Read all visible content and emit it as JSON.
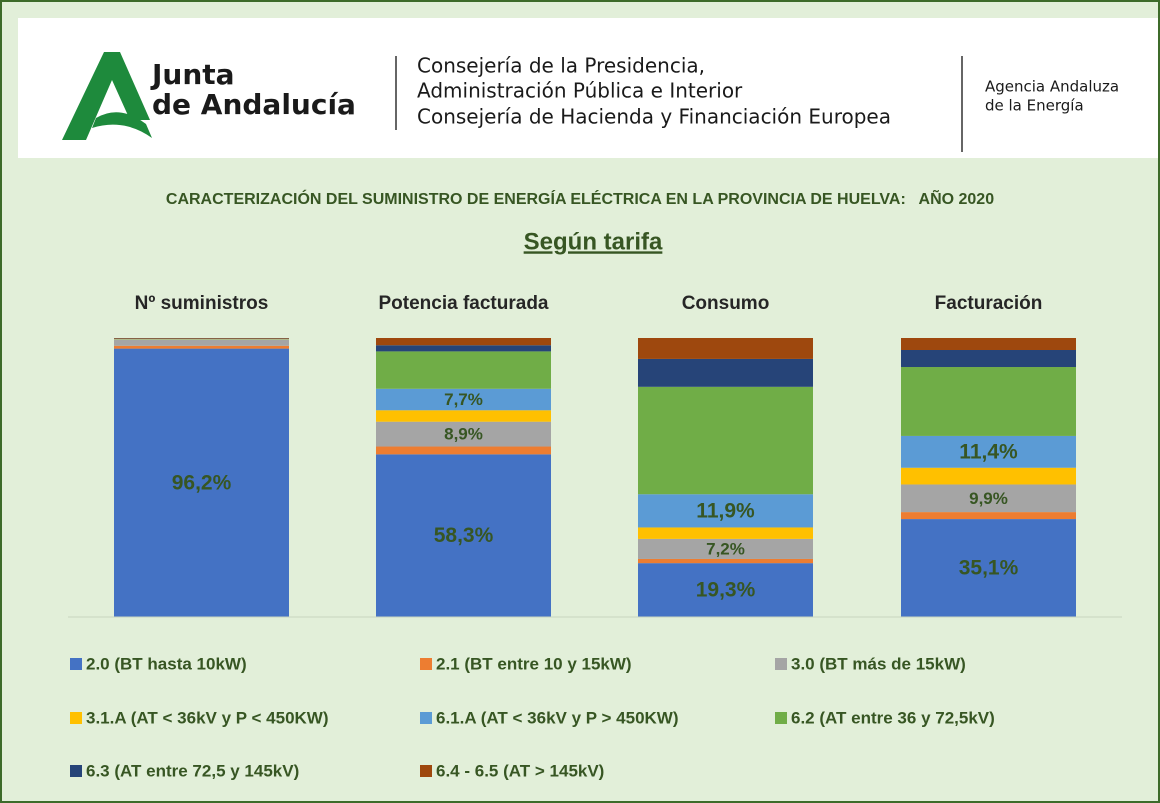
{
  "header": {
    "logo": [
      "Junta",
      "de Andalucía"
    ],
    "department": [
      "Consejería de la Presidencia,",
      "Administración Pública e Interior",
      "Consejería de Hacienda y Financiación Europea"
    ],
    "agency": [
      "Agencia Andaluza",
      "de la Energía"
    ]
  },
  "chart_data": {
    "type": "stacked_bar",
    "title": "CARACTERIZACIÓN DEL SUMINISTRO DE ENERGÍA ELÉCTRICA EN LA PROVINCIA DE HUELVA:   AÑO 2020",
    "subtitle": "Según tarifa",
    "categories": [
      "Nº suministros",
      "Potencia facturada",
      "Consumo",
      "Facturación"
    ],
    "ylim": [
      0,
      100
    ],
    "series": [
      {
        "name": "2.0 (BT hasta 10kW)",
        "color": "#4472c4",
        "values": [
          96.2,
          58.3,
          19.3,
          35.1
        ],
        "value_labels": [
          "96,2%",
          "58,3%",
          "19,3%",
          "35,1%"
        ]
      },
      {
        "name": "2.1 (BT entre 10 y 15kW)",
        "color": "#ed7d31",
        "values": [
          1.0,
          2.8,
          1.5,
          2.5
        ],
        "value_labels": [
          null,
          null,
          null,
          null
        ]
      },
      {
        "name": "3.0 (BT más de 15kW)",
        "color": "#a5a5a5",
        "values": [
          2.2,
          8.9,
          7.2,
          9.9
        ],
        "value_labels": [
          null,
          "8,9%",
          "7,2%",
          "9,9%"
        ]
      },
      {
        "name": "3.1.A (AT < 36kV y P < 450KW)",
        "color": "#ffc000",
        "values": [
          0.1,
          4.1,
          4.1,
          6.0
        ],
        "value_labels": [
          null,
          null,
          null,
          null
        ]
      },
      {
        "name": "6.1.A (AT < 36kV y P > 450KW)",
        "color": "#5b9bd5",
        "values": [
          0.1,
          7.7,
          11.9,
          11.4
        ],
        "value_labels": [
          null,
          "7,7%",
          "11,9%",
          "11,4%"
        ]
      },
      {
        "name": "6.2 (AT entre 36 y 72,5kV)",
        "color": "#70ad47",
        "values": [
          0.1,
          13.4,
          38.5,
          24.7
        ],
        "value_labels": [
          null,
          null,
          null,
          null
        ]
      },
      {
        "name": "6.3  (AT entre 72,5 y 145kV)",
        "color": "#264478",
        "values": [
          0.1,
          2.2,
          10.0,
          6.1
        ],
        "value_labels": [
          null,
          null,
          null,
          null
        ]
      },
      {
        "name": "6.4 - 6.5  (AT > 145kV)",
        "color": "#9e480e",
        "values": [
          0.2,
          2.6,
          7.5,
          4.3
        ],
        "value_labels": [
          null,
          null,
          null,
          null
        ]
      }
    ]
  }
}
